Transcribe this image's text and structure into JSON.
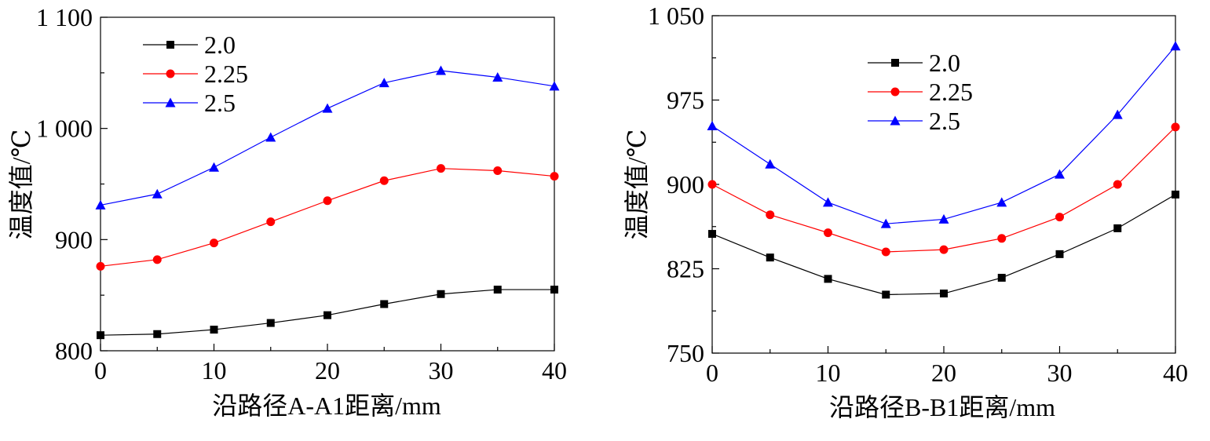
{
  "chart_data": [
    {
      "type": "line",
      "title": "",
      "xlabel": "沿路径A-A1距离/mm",
      "ylabel": "温度值/℃",
      "xlim": [
        0,
        40
      ],
      "ylim": [
        800,
        1100
      ],
      "xticks": [
        0,
        10,
        20,
        30,
        40
      ],
      "xtick_labels": [
        "0",
        "10",
        "20",
        "30",
        "40"
      ],
      "yticks": [
        800,
        900,
        1000,
        1100
      ],
      "ytick_labels": [
        "800",
        "900",
        "1 000",
        "1 100"
      ],
      "legend_position": "top-left",
      "x": [
        0,
        5,
        10,
        15,
        20,
        25,
        30,
        35,
        40
      ],
      "series": [
        {
          "name": "2.0",
          "color": "#000000",
          "marker": "square",
          "values": [
            814,
            815,
            819,
            825,
            832,
            842,
            851,
            855,
            855
          ]
        },
        {
          "name": "2.25",
          "color": "#ff0000",
          "marker": "circle",
          "values": [
            876,
            882,
            897,
            916,
            935,
            953,
            964,
            962,
            957
          ]
        },
        {
          "name": "2.5",
          "color": "#0000ff",
          "marker": "triangle",
          "values": [
            931,
            941,
            965,
            992,
            1018,
            1041,
            1052,
            1046,
            1038
          ]
        }
      ]
    },
    {
      "type": "line",
      "title": "",
      "xlabel": "沿路径B-B1距离/mm",
      "ylabel": "温度值/℃",
      "xlim": [
        0,
        40
      ],
      "ylim": [
        750,
        1050
      ],
      "xticks": [
        0,
        10,
        20,
        30,
        40
      ],
      "xtick_labels": [
        "0",
        "10",
        "20",
        "30",
        "40"
      ],
      "yticks": [
        750,
        825,
        900,
        975,
        1050
      ],
      "ytick_labels": [
        "750",
        "825",
        "900",
        "975",
        "1 050"
      ],
      "legend_position": "top-center",
      "x": [
        0,
        5,
        10,
        15,
        20,
        25,
        30,
        35,
        40
      ],
      "series": [
        {
          "name": "2.0",
          "color": "#000000",
          "marker": "square",
          "values": [
            856,
            835,
            816,
            802,
            803,
            817,
            838,
            861,
            891
          ]
        },
        {
          "name": "2.25",
          "color": "#ff0000",
          "marker": "circle",
          "values": [
            900,
            873,
            857,
            840,
            842,
            852,
            871,
            900,
            951
          ]
        },
        {
          "name": "2.5",
          "color": "#0000ff",
          "marker": "triangle",
          "values": [
            952,
            918,
            884,
            865,
            869,
            884,
            909,
            962,
            1023
          ]
        }
      ]
    }
  ]
}
